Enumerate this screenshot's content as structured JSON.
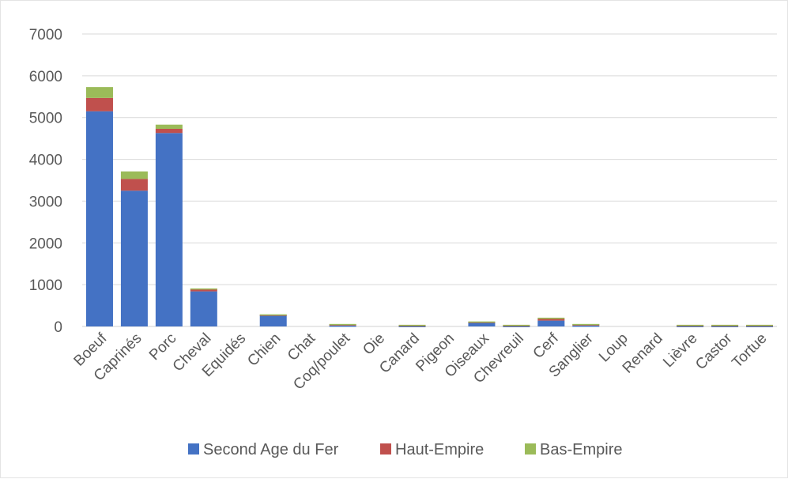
{
  "chart_data": {
    "type": "bar",
    "stacked": true,
    "title": "",
    "xlabel": "",
    "ylabel": "",
    "ylim": [
      0,
      7000
    ],
    "y_ticks": [
      0,
      1000,
      2000,
      3000,
      4000,
      5000,
      6000,
      7000
    ],
    "grid": true,
    "legend_position": "bottom",
    "categories": [
      "Boeuf",
      "Caprinés",
      "Porc",
      "Cheval",
      "Equidés",
      "Chien",
      "Chat",
      "Coq/poulet",
      "Oie",
      "Canard",
      "Pigeon",
      "Oiseaux",
      "Chevreuil",
      "Cerf",
      "Sanglier",
      "Loup",
      "Renard",
      "Lièvre",
      "Castor",
      "Tortue"
    ],
    "series": [
      {
        "name": "Second Age du Fer",
        "color": "#4472c4",
        "values": [
          5150,
          3250,
          4630,
          840,
          0,
          270,
          0,
          20,
          0,
          10,
          0,
          100,
          10,
          140,
          20,
          0,
          0,
          10,
          10,
          10
        ]
      },
      {
        "name": "Haut-Empire",
        "color": "#c0504d",
        "values": [
          320,
          280,
          100,
          60,
          0,
          10,
          0,
          30,
          0,
          20,
          0,
          10,
          20,
          40,
          30,
          0,
          0,
          20,
          20,
          20
        ]
      },
      {
        "name": "Bas-Empire",
        "color": "#9bbb59",
        "values": [
          260,
          180,
          100,
          10,
          0,
          10,
          0,
          10,
          0,
          10,
          0,
          10,
          10,
          30,
          10,
          0,
          0,
          10,
          10,
          10
        ]
      }
    ]
  }
}
